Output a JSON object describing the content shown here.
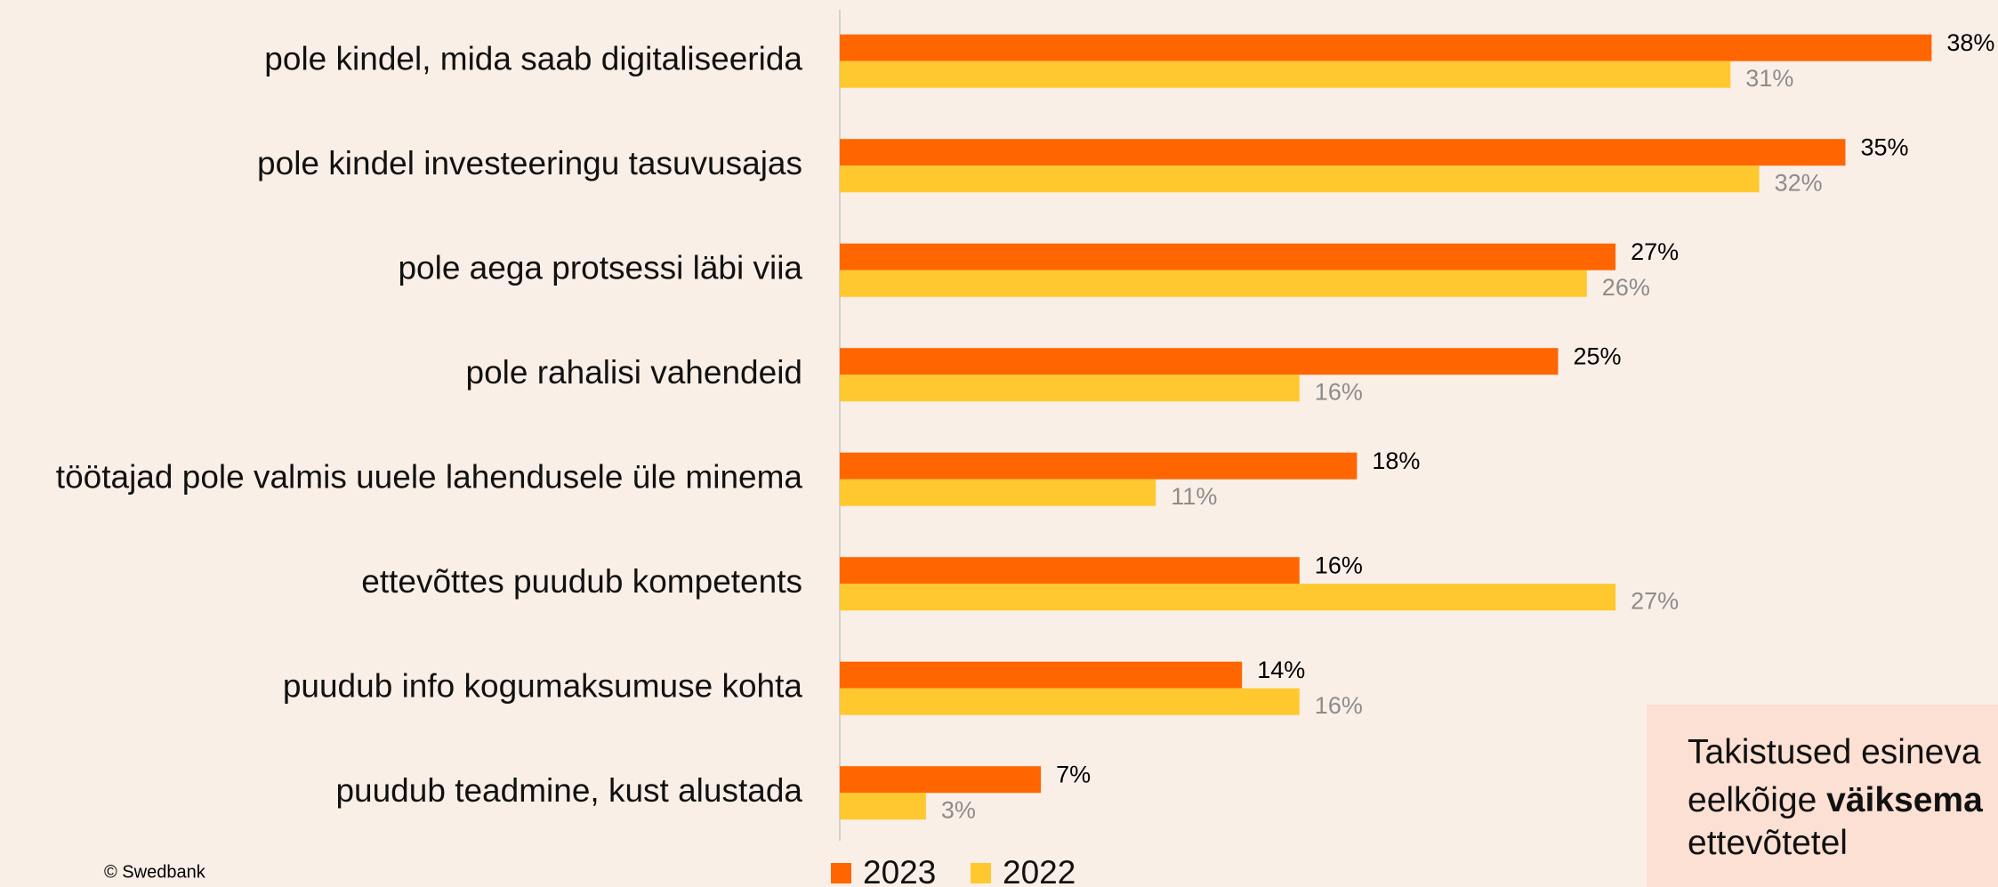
{
  "chart_data": {
    "type": "barh",
    "categories": [
      "pole kindel, mida saab digitaliseerida",
      "pole kindel investeeringu tasuvusajas",
      "pole aega protsessi läbi viia",
      "pole rahalisi vahendeid",
      "töötajad pole valmis uuele lahendusele üle minema",
      "ettevõttes puudub kompetents",
      "puudub info kogumaksumuse kohta",
      "puudub teadmine, kust alustada"
    ],
    "series": [
      {
        "name": "2023",
        "color": "#ff6600",
        "label_color": "#000000",
        "values": [
          38,
          35,
          27,
          25,
          18,
          16,
          14,
          7
        ],
        "value_labels": [
          "38%",
          "35%",
          "27%",
          "25%",
          "18%",
          "16%",
          "14%",
          "7%"
        ]
      },
      {
        "name": "2022",
        "color": "#ffc82e",
        "label_color": "#8c8c8c",
        "values": [
          31,
          32,
          26,
          16,
          11,
          27,
          16,
          3
        ],
        "value_labels": [
          "31%",
          "32%",
          "26%",
          "16%",
          "11%",
          "27%",
          "16%",
          "3%"
        ]
      }
    ],
    "xlim": [
      0,
      40
    ],
    "source": "© Swedbank",
    "annotation": {
      "line1": "Takistused esineva",
      "line2_start": "eelkõige ",
      "line2_bold": "väiksema",
      "line3": "ettevõtetel"
    }
  }
}
